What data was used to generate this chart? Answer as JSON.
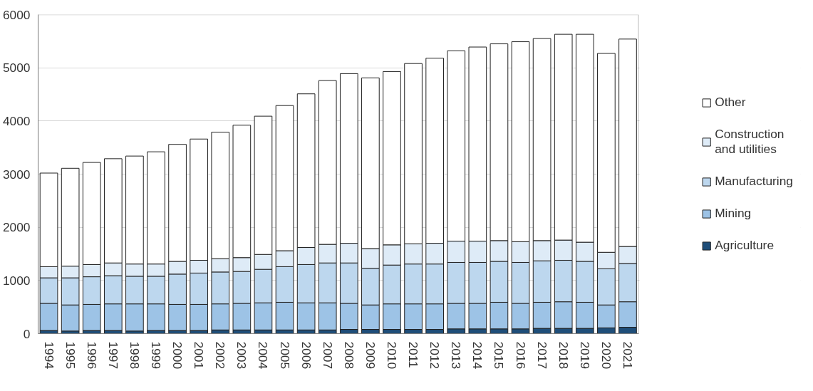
{
  "chart_data": {
    "type": "bar",
    "stacked": true,
    "categories": [
      "1994",
      "1995",
      "1996",
      "1997",
      "1998",
      "1999",
      "2000",
      "2001",
      "2002",
      "2003",
      "2004",
      "2005",
      "2006",
      "2007",
      "2008",
      "2009",
      "2010",
      "2011",
      "2012",
      "2013",
      "2014",
      "2015",
      "2016",
      "2017",
      "2018",
      "2019",
      "2020",
      "2021"
    ],
    "series": [
      {
        "name": "Agriculture",
        "color": "#1f4e79",
        "values": [
          60,
          50,
          60,
          60,
          50,
          60,
          60,
          60,
          70,
          70,
          70,
          70,
          70,
          70,
          80,
          80,
          80,
          80,
          80,
          90,
          90,
          90,
          90,
          100,
          100,
          100,
          110,
          120
        ]
      },
      {
        "name": "Mining",
        "color": "#9dc3e6",
        "values": [
          510,
          490,
          490,
          500,
          510,
          500,
          490,
          490,
          490,
          500,
          510,
          520,
          510,
          510,
          490,
          460,
          480,
          480,
          480,
          480,
          480,
          500,
          480,
          490,
          500,
          490,
          430,
          480
        ]
      },
      {
        "name": "Manufacturing",
        "color": "#bdd7ee",
        "values": [
          480,
          510,
          520,
          530,
          520,
          520,
          570,
          590,
          600,
          600,
          630,
          670,
          720,
          750,
          760,
          690,
          730,
          750,
          750,
          770,
          770,
          770,
          770,
          780,
          780,
          770,
          680,
          720
        ]
      },
      {
        "name": "Construction and utilities",
        "color": "#deebf7",
        "values": [
          210,
          220,
          230,
          240,
          230,
          230,
          240,
          240,
          250,
          260,
          280,
          300,
          320,
          350,
          370,
          370,
          380,
          380,
          390,
          400,
          400,
          390,
          390,
          380,
          380,
          360,
          310,
          320
        ]
      },
      {
        "name": "Other",
        "color": "#ffffff",
        "values": [
          1760,
          1840,
          1920,
          1960,
          2030,
          2110,
          2200,
          2280,
          2380,
          2490,
          2600,
          2730,
          2890,
          3080,
          3190,
          3210,
          3260,
          3390,
          3480,
          3580,
          3650,
          3700,
          3760,
          3800,
          3870,
          3910,
          3740,
          3900
        ]
      }
    ],
    "ylim": [
      0,
      6000
    ],
    "yticks": [
      0,
      1000,
      2000,
      3000,
      4000,
      5000,
      6000
    ],
    "grid": "y",
    "legend": "right"
  }
}
